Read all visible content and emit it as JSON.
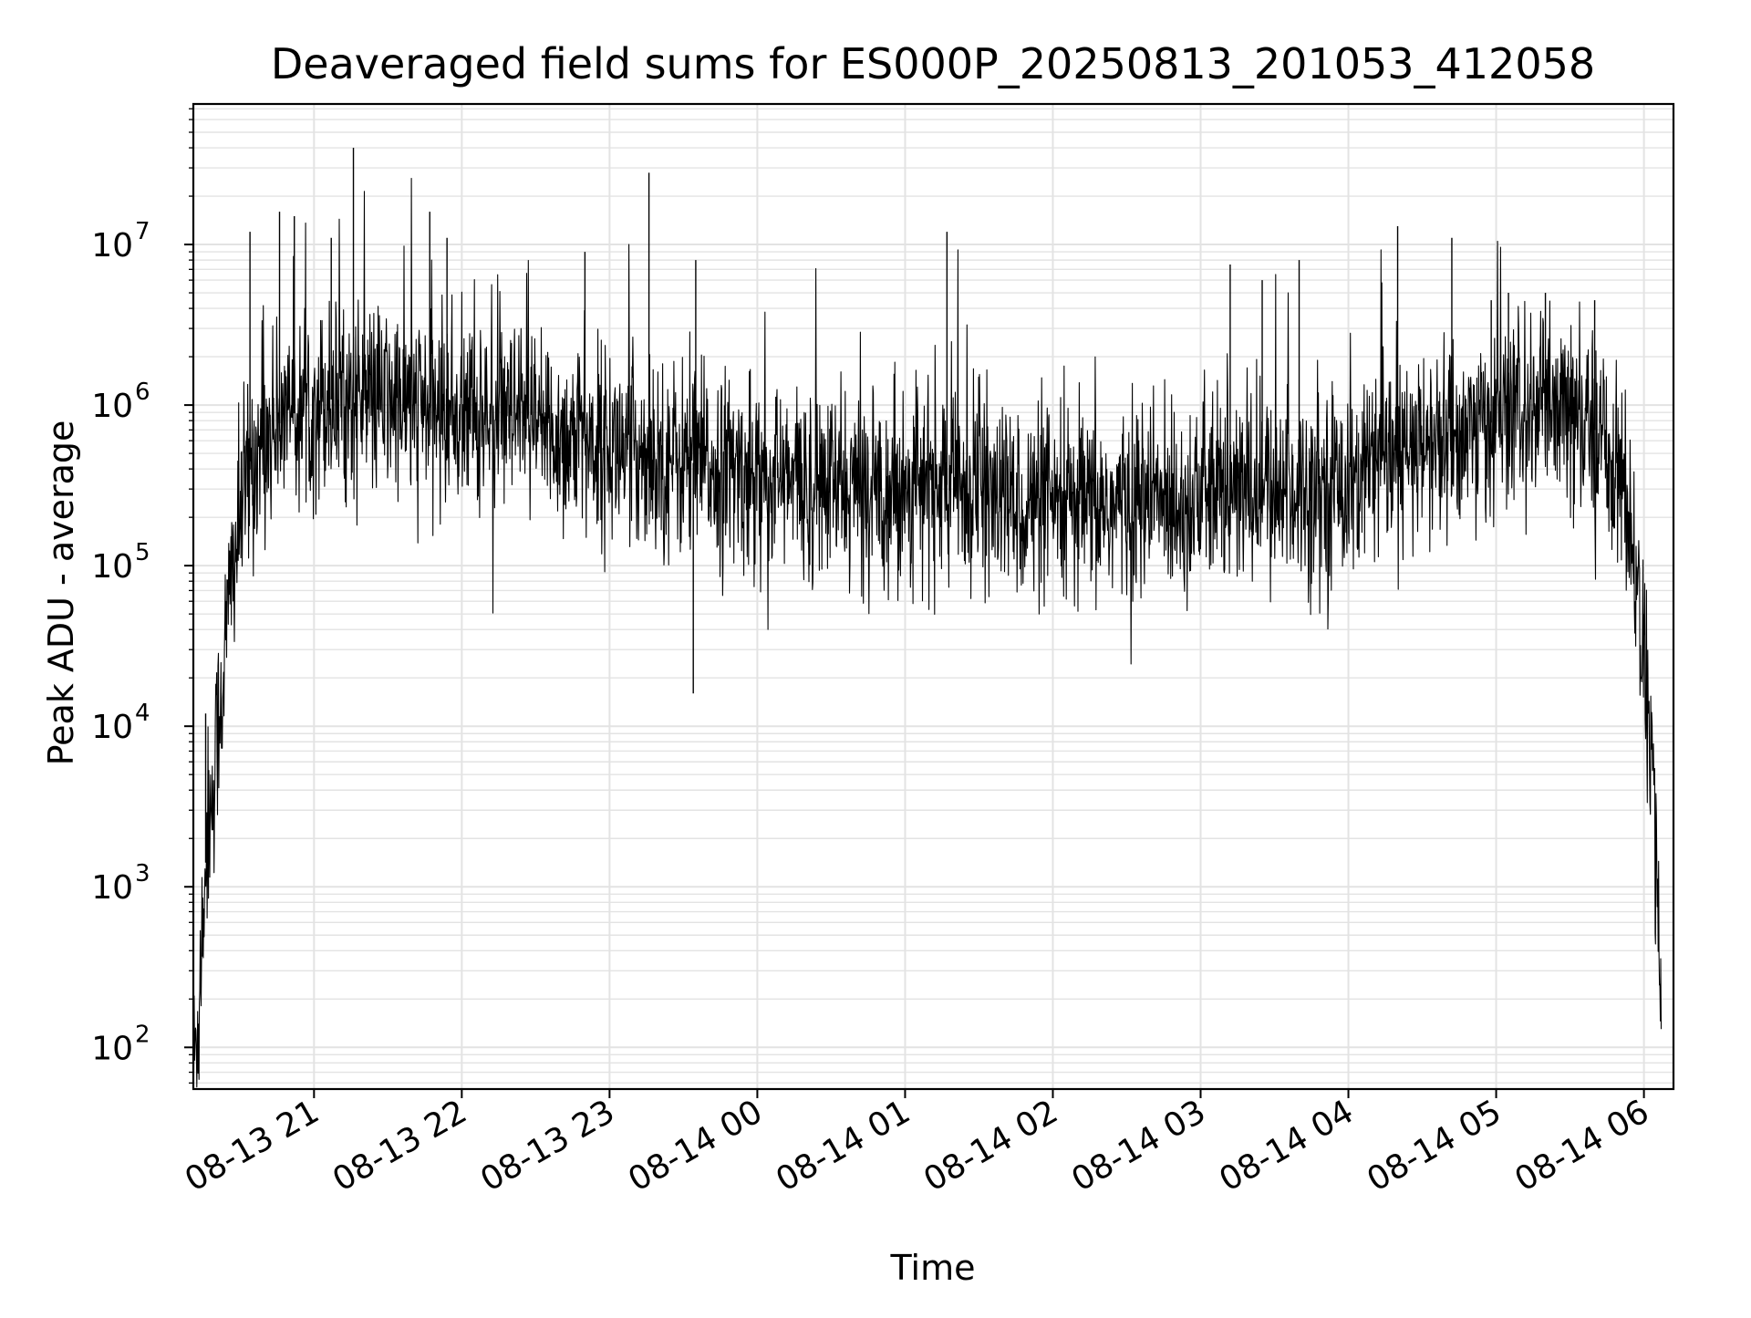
{
  "chart_data": {
    "type": "line",
    "title": "Deaveraged field sums for ES000P_20250813_201053_412058",
    "xlabel": "Time",
    "ylabel": "Peak ADU - average",
    "y_scale": "log",
    "ylim": [
      55,
      75000000
    ],
    "xlim": [
      "08-13 20:11",
      "08-14 06:12"
    ],
    "grid": true,
    "line_color": "#000000",
    "grid_color": "#e3e3e3",
    "x_ticks": [
      {
        "t": "08-13 21:00",
        "label": "08-13 21"
      },
      {
        "t": "08-13 22:00",
        "label": "08-13 22"
      },
      {
        "t": "08-13 23:00",
        "label": "08-13 23"
      },
      {
        "t": "08-14 00:00",
        "label": "08-14 00"
      },
      {
        "t": "08-14 01:00",
        "label": "08-14 01"
      },
      {
        "t": "08-14 02:00",
        "label": "08-14 02"
      },
      {
        "t": "08-14 03:00",
        "label": "08-14 03"
      },
      {
        "t": "08-14 04:00",
        "label": "08-14 04"
      },
      {
        "t": "08-14 05:00",
        "label": "08-14 05"
      },
      {
        "t": "08-14 06:00",
        "label": "08-14 06"
      }
    ],
    "y_ticks": [
      {
        "value": 100,
        "base": "10",
        "exp": "2"
      },
      {
        "value": 1000,
        "base": "10",
        "exp": "3"
      },
      {
        "value": 10000,
        "base": "10",
        "exp": "4"
      },
      {
        "value": 100000,
        "base": "10",
        "exp": "5"
      },
      {
        "value": 1000000,
        "base": "10",
        "exp": "6"
      },
      {
        "value": 10000000,
        "base": "10",
        "exp": "7"
      }
    ],
    "series": [
      {
        "x": [
          "08-13 20:11",
          "08-13 20:13",
          "08-13 20:15",
          "08-13 20:17",
          "08-13 20:19",
          "08-13 20:21",
          "08-13 20:23",
          "08-13 20:25",
          "08-13 20:27",
          "08-13 20:29",
          "08-13 20:31",
          "08-13 20:33",
          "08-13 20:35",
          "08-13 20:38",
          "08-13 20:41",
          "08-13 20:45",
          "08-13 20:50",
          "08-13 20:55",
          "08-13 21:00",
          "08-13 21:10",
          "08-13 21:20",
          "08-13 21:30",
          "08-13 21:40",
          "08-13 21:50",
          "08-13 22:00",
          "08-13 22:15",
          "08-13 22:30",
          "08-13 22:45",
          "08-13 23:00",
          "08-13 23:15",
          "08-13 23:30",
          "08-13 23:45",
          "08-14 00:00",
          "08-14 00:20",
          "08-14 00:40",
          "08-14 01:00",
          "08-14 01:20",
          "08-14 01:40",
          "08-14 02:00",
          "08-14 02:20",
          "08-14 02:40",
          "08-14 03:00",
          "08-14 03:20",
          "08-14 03:40",
          "08-14 04:00",
          "08-14 04:20",
          "08-14 04:40",
          "08-14 05:00",
          "08-14 05:20",
          "08-14 05:40",
          "08-14 05:50",
          "08-14 05:55",
          "08-14 06:00",
          "08-14 06:03",
          "08-14 06:05",
          "08-14 06:07"
        ],
        "y": [
          70,
          150,
          800,
          2500,
          4000,
          10000,
          20000,
          50000,
          100000,
          150000,
          250000,
          350000,
          450000,
          550000,
          650000,
          750000,
          850000,
          950000,
          1050000,
          1100000,
          1100000,
          1050000,
          1000000,
          950000,
          900000,
          800000,
          700000,
          620000,
          550000,
          500000,
          450000,
          400000,
          360000,
          320000,
          300000,
          310000,
          320000,
          250000,
          220000,
          230000,
          250000,
          270000,
          290000,
          300000,
          340000,
          450000,
          600000,
          800000,
          900000,
          700000,
          400000,
          150000,
          30000,
          5000,
          2000,
          150
        ]
      }
    ],
    "spikes": [
      {
        "x": "08-13 20:16",
        "y": 12000
      },
      {
        "x": "08-13 20:34",
        "y": 12000000
      },
      {
        "x": "08-13 20:46",
        "y": 16000000
      },
      {
        "x": "08-13 20:52",
        "y": 15000000
      },
      {
        "x": "08-13 21:07",
        "y": 11000000
      },
      {
        "x": "08-13 21:16",
        "y": 40000000
      },
      {
        "x": "08-13 21:47",
        "y": 16000000
      },
      {
        "x": "08-13 21:54",
        "y": 11000000
      },
      {
        "x": "08-13 22:50",
        "y": 9000000
      },
      {
        "x": "08-13 23:16",
        "y": 28000000
      },
      {
        "x": "08-13 23:34",
        "y": 16000
      },
      {
        "x": "08-13 23:35",
        "y": 8000000
      },
      {
        "x": "08-14 01:17",
        "y": 12000000
      },
      {
        "x": "08-14 03:12",
        "y": 7500000
      },
      {
        "x": "08-14 03:25",
        "y": 6000000
      },
      {
        "x": "08-14 03:40",
        "y": 8000000
      },
      {
        "x": "08-14 04:20",
        "y": 13000000
      },
      {
        "x": "08-14 04:42",
        "y": 11000000
      },
      {
        "x": "08-14 04:58",
        "y": 4500000
      },
      {
        "x": "08-14 05:05",
        "y": 5000000
      },
      {
        "x": "08-14 05:20",
        "y": 5000000
      },
      {
        "x": "08-14 05:40",
        "y": 4500000
      }
    ]
  }
}
